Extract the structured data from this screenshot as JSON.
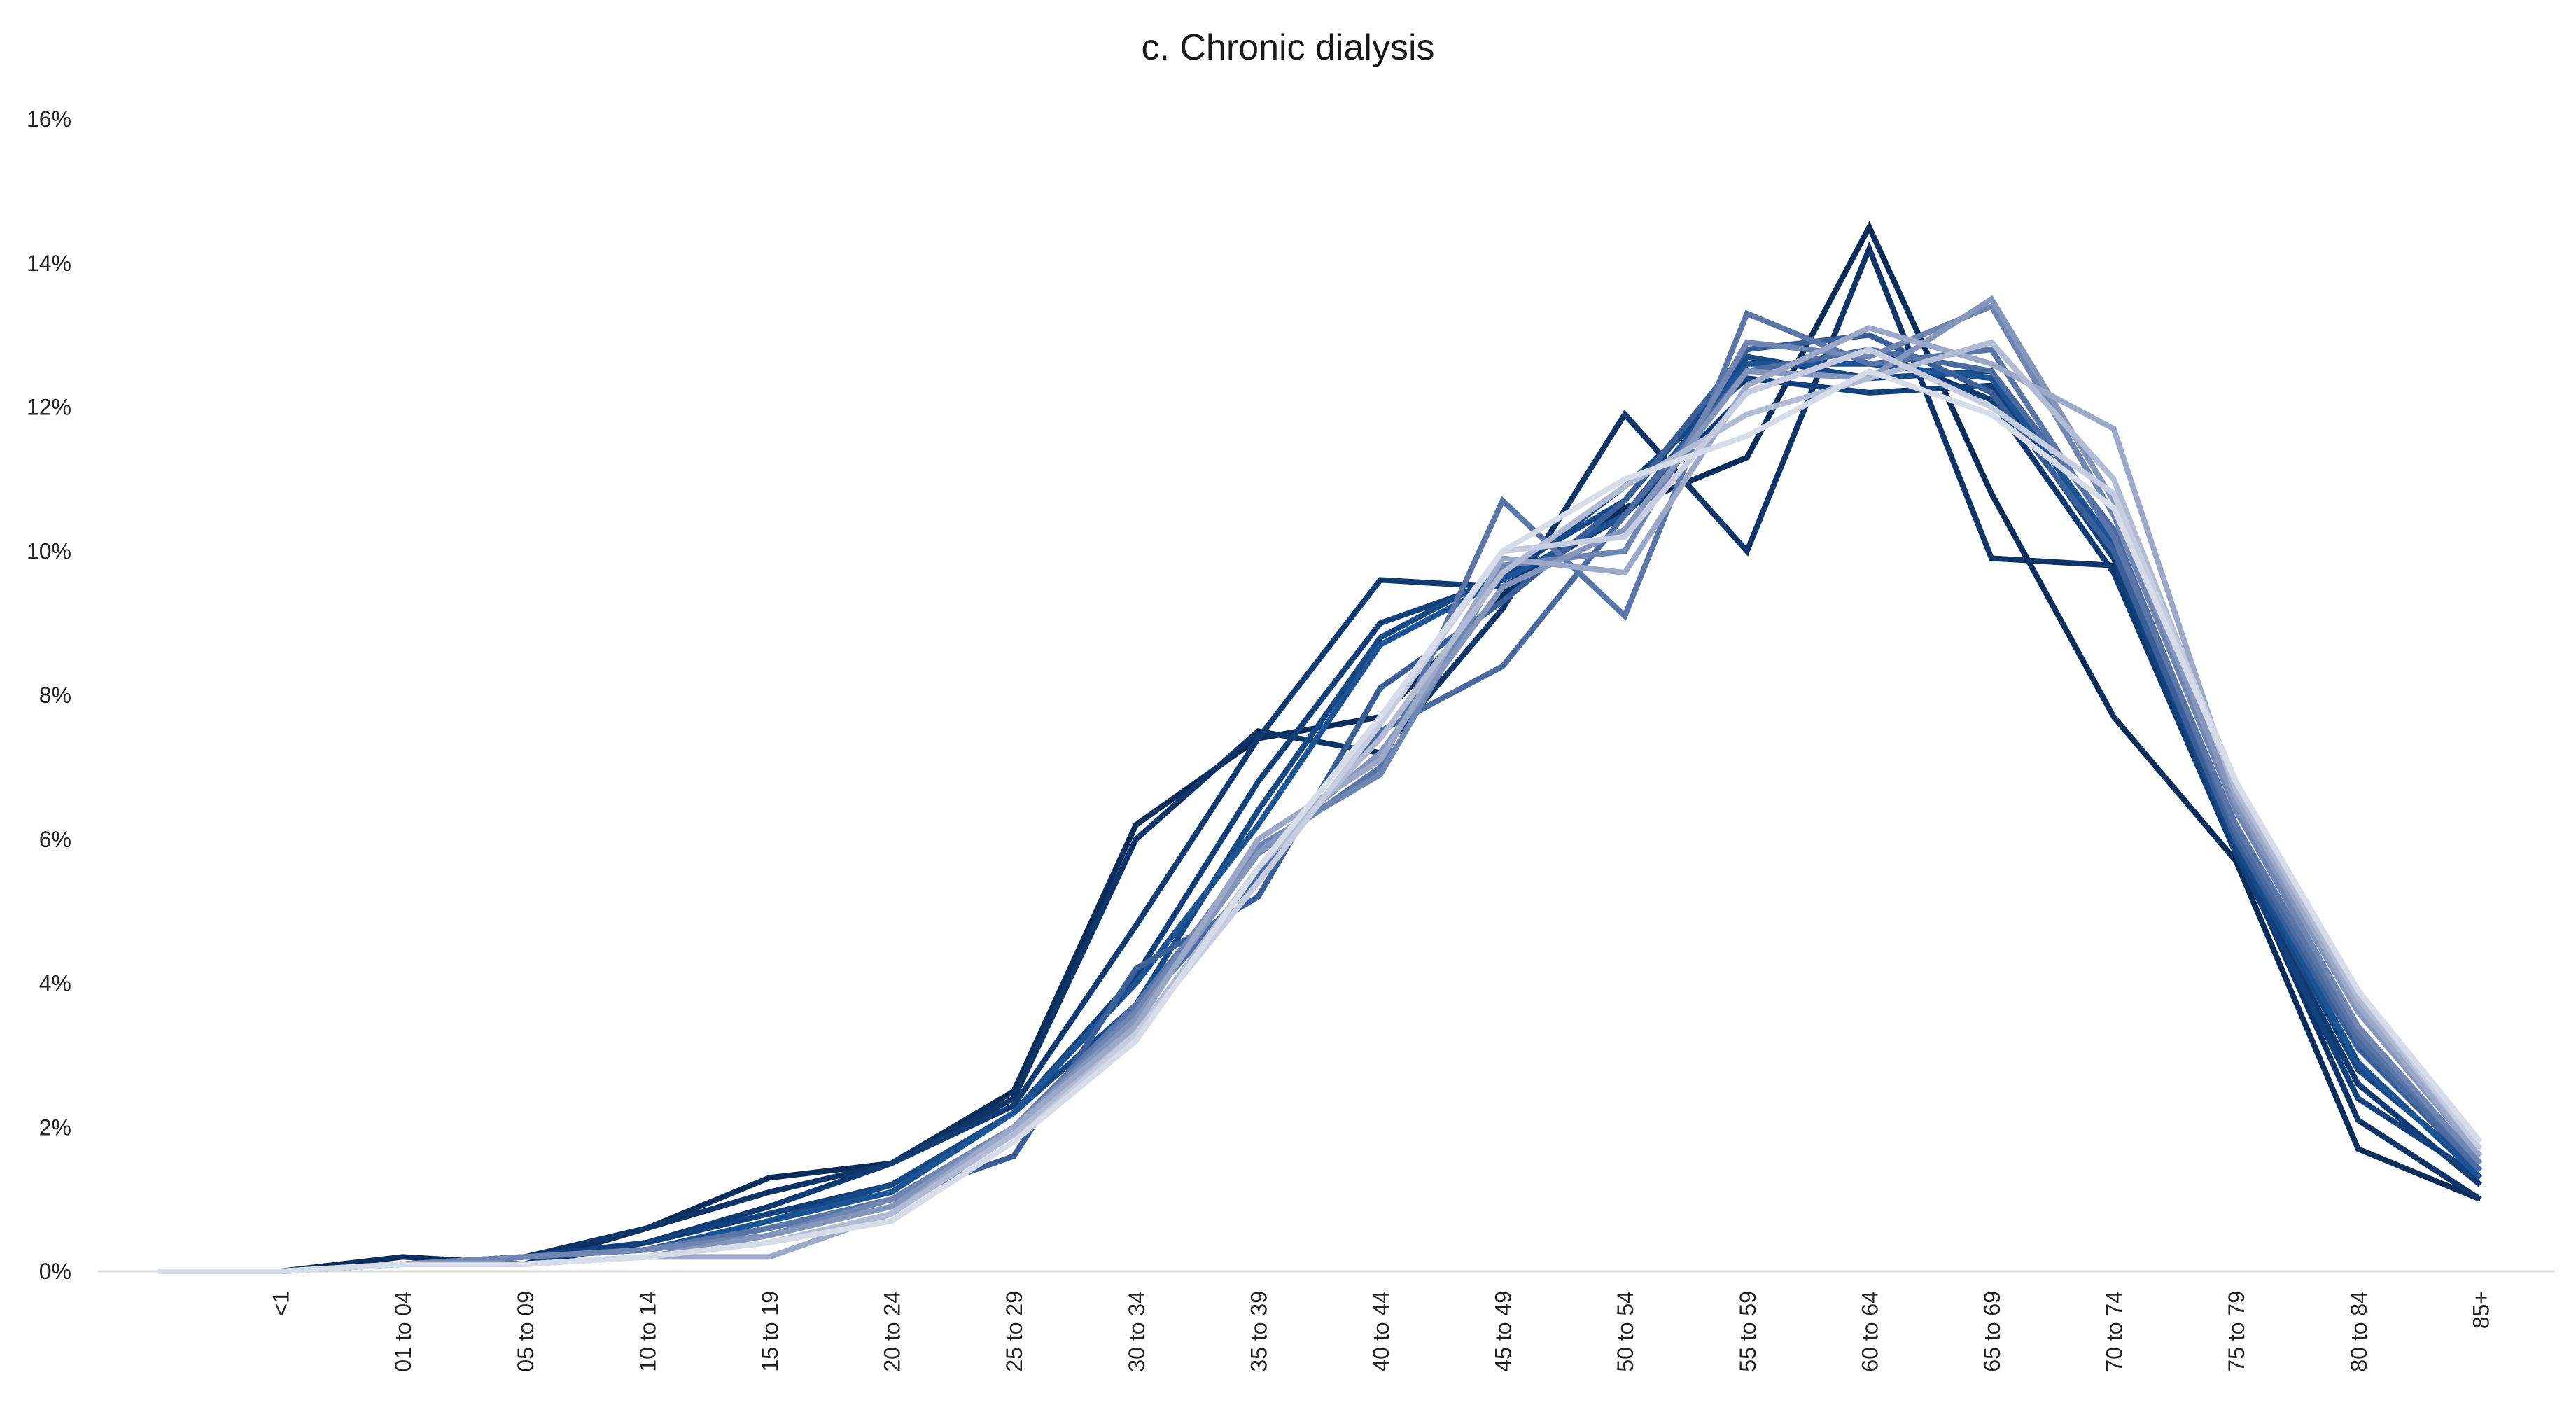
{
  "chart_data": {
    "type": "line",
    "title": "c. Chronic dialysis",
    "xlabel": "",
    "ylabel": "",
    "categories": [
      "",
      "<1",
      "01 to 04",
      "05 to 09",
      "10 to 14",
      "15 to 19",
      "20 to 24",
      "25 to 29",
      "30 to 34",
      "35 to 39",
      "40 to 44",
      "45 to 49",
      "50 to 54",
      "55 to 59",
      "60 to 64",
      "65 to 69",
      "70 to 74",
      "75 to 79",
      "80 to 84",
      "85+"
    ],
    "y_tick_labels": [
      "0%",
      "2%",
      "4%",
      "6%",
      "8%",
      "10%",
      "12%",
      "14%",
      "16%"
    ],
    "ylim": [
      0,
      16
    ],
    "grid": false,
    "legend": "none",
    "series": [
      {
        "color": "#0b2d5b",
        "values": [
          0,
          0,
          0.2,
          0.1,
          0.6,
          1.3,
          1.5,
          2.5,
          6.2,
          7.4,
          7.7,
          9.4,
          10.6,
          11.3,
          14.5,
          10.8,
          7.7,
          5.7,
          1.7,
          1.0
        ]
      },
      {
        "color": "#0e3468",
        "values": [
          0,
          0,
          0.1,
          0.2,
          0.6,
          1.1,
          1.5,
          2.4,
          6.0,
          7.5,
          7.2,
          9.2,
          11.9,
          10.0,
          14.2,
          9.9,
          9.8,
          5.9,
          2.1,
          1.0
        ]
      },
      {
        "color": "#103a72",
        "values": [
          0,
          0,
          0.1,
          0.1,
          0.4,
          0.9,
          1.5,
          2.3,
          4.8,
          7.4,
          9.6,
          9.5,
          10.5,
          12.2,
          12.8,
          12.1,
          9.7,
          5.8,
          2.6,
          1.2
        ]
      },
      {
        "color": "#12407c",
        "values": [
          0,
          0,
          0.1,
          0.2,
          0.4,
          0.8,
          1.2,
          2.2,
          4.1,
          6.8,
          9.0,
          9.6,
          10.9,
          12.4,
          12.2,
          12.3,
          9.9,
          5.8,
          2.4,
          1.3
        ]
      },
      {
        "color": "#164986",
        "values": [
          0,
          0,
          0.1,
          0.2,
          0.3,
          0.7,
          1.2,
          2.2,
          3.7,
          6.4,
          8.8,
          9.7,
          10.7,
          12.7,
          12.4,
          12.5,
          10.0,
          5.9,
          2.8,
          1.4
        ]
      },
      {
        "color": "#1b5394",
        "values": [
          0,
          0,
          0.1,
          0.2,
          0.3,
          0.7,
          1.1,
          2.2,
          4.0,
          6.2,
          8.7,
          9.6,
          10.5,
          12.6,
          12.6,
          12.4,
          10.1,
          6.0,
          2.9,
          1.3
        ]
      },
      {
        "color": "#3a5f98",
        "values": [
          0,
          0,
          0.1,
          0.2,
          0.3,
          0.6,
          1.0,
          1.6,
          4.2,
          5.2,
          8.1,
          9.3,
          10.7,
          12.8,
          13.0,
          12.2,
          10.0,
          6.0,
          3.1,
          1.4
        ]
      },
      {
        "color": "#4a6aa0",
        "values": [
          0,
          0,
          0.1,
          0.2,
          0.3,
          0.6,
          1.0,
          2.0,
          3.6,
          5.5,
          7.5,
          8.4,
          10.5,
          12.5,
          12.8,
          12.5,
          10.3,
          6.1,
          3.2,
          1.4
        ]
      },
      {
        "color": "#5a75a8",
        "values": [
          0,
          0,
          0.1,
          0.2,
          0.3,
          0.6,
          1.0,
          2.0,
          3.7,
          5.8,
          7.0,
          10.7,
          9.1,
          13.3,
          12.6,
          12.8,
          10.2,
          6.2,
          3.3,
          1.5
        ]
      },
      {
        "color": "#6f85b2",
        "values": [
          0,
          0,
          0.1,
          0.2,
          0.3,
          0.5,
          1.0,
          2.0,
          3.6,
          5.9,
          6.9,
          9.8,
          10.0,
          12.9,
          12.7,
          13.4,
          10.5,
          6.4,
          3.4,
          1.5
        ]
      },
      {
        "color": "#8596bd",
        "values": [
          0,
          0,
          0.1,
          0.1,
          0.2,
          0.5,
          0.9,
          2.0,
          3.5,
          5.8,
          7.2,
          9.5,
          10.3,
          12.5,
          12.4,
          13.5,
          10.7,
          6.5,
          3.6,
          1.6
        ]
      },
      {
        "color": "#9ba8c8",
        "values": [
          0,
          0,
          0.1,
          0.1,
          0.2,
          0.2,
          0.8,
          2.0,
          3.4,
          6.0,
          7.1,
          9.9,
          9.7,
          12.3,
          13.1,
          12.6,
          11.7,
          6.6,
          3.7,
          1.6
        ]
      },
      {
        "color": "#b1bbd4",
        "values": [
          0,
          0,
          0.1,
          0.1,
          0.2,
          0.4,
          0.8,
          1.9,
          3.3,
          5.6,
          7.4,
          9.7,
          10.9,
          11.9,
          12.4,
          12.9,
          11.0,
          6.7,
          3.8,
          1.7
        ]
      },
      {
        "color": "#c6cde0",
        "values": [
          0,
          0,
          0.1,
          0.1,
          0.2,
          0.4,
          0.7,
          1.8,
          3.3,
          5.4,
          7.6,
          10.0,
          10.2,
          12.2,
          12.8,
          12.0,
          10.8,
          6.8,
          3.9,
          1.7
        ]
      },
      {
        "color": "#d7dce9",
        "values": [
          0,
          0,
          0.1,
          0.1,
          0.2,
          0.4,
          0.7,
          1.8,
          3.2,
          5.6,
          7.7,
          10.0,
          11.0,
          11.6,
          12.5,
          11.9,
          10.6,
          6.8,
          3.9,
          1.8
        ]
      }
    ]
  }
}
